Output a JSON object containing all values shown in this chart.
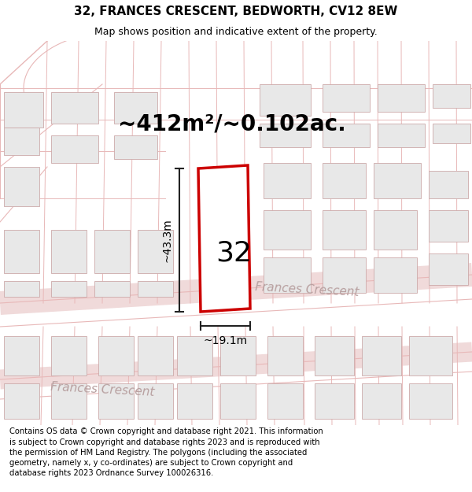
{
  "title_line1": "32, FRANCES CRESCENT, BEDWORTH, CV12 8EW",
  "title_line2": "Map shows position and indicative extent of the property.",
  "area_label": "~412m²/~0.102ac.",
  "number_label": "32",
  "dim_width": "~19.1m",
  "dim_height": "~43.3m",
  "street_label1": "Frances Crescent",
  "street_label2": "Frances Crescent",
  "footer_text": "Contains OS data © Crown copyright and database right 2021. This information is subject to Crown copyright and database rights 2023 and is reproduced with the permission of HM Land Registry. The polygons (including the associated geometry, namely x, y co-ordinates) are subject to Crown copyright and database rights 2023 Ordnance Survey 100026316.",
  "map_bg": "#f8f5f5",
  "road_line_color": "#e8b8b8",
  "road_band_color": "#f0dada",
  "building_fill": "#e8e8e8",
  "building_edge": "#ccaaaa",
  "highlight_fill": "#ffffff",
  "highlight_edge": "#cc0000",
  "dim_line_color": "#222222",
  "street_text_color": "#b8a0a0",
  "title_fontsize": 11,
  "subtitle_fontsize": 9,
  "area_fontsize": 20,
  "number_fontsize": 26,
  "dim_fontsize": 10,
  "street_fontsize": 11,
  "footer_fontsize": 7.2
}
